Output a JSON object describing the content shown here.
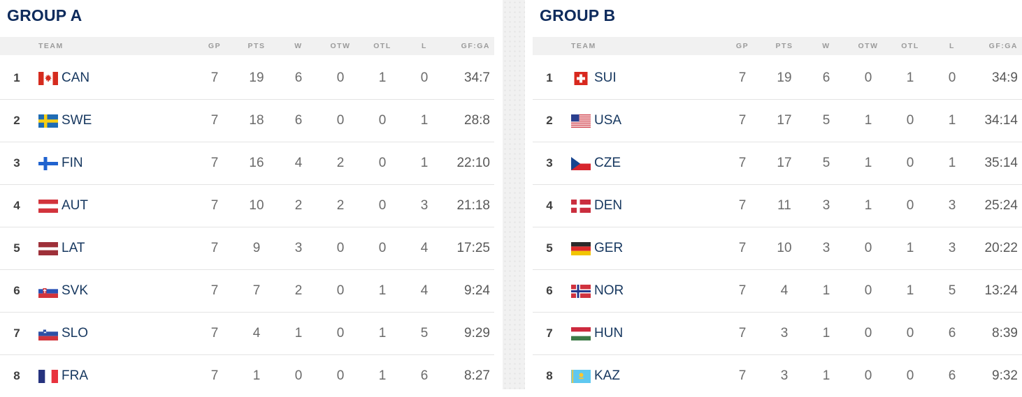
{
  "columns": {
    "team": "TEAM",
    "gp": "GP",
    "pts": "PTS",
    "w": "W",
    "otw": "OTW",
    "otl": "OTL",
    "l": "L",
    "gfga": "GF:GA"
  },
  "colors": {
    "title_navy": "#0e2b5c",
    "team_text_navy": "#16375f",
    "header_bg": "#f1f1f1",
    "header_text": "#9b9b9b",
    "number_text": "#6b6b6b",
    "rank_text": "#3f3f3f",
    "row_border": "#e4e4e4",
    "divider_bg": "#f1f1f1"
  },
  "groups": [
    {
      "title": "GROUP A",
      "rows": [
        {
          "rank": "1",
          "flag_icon": "flag-can-icon",
          "team": "CAN",
          "gp": "7",
          "pts": "19",
          "w": "6",
          "otw": "0",
          "otl": "1",
          "l": "0",
          "gfga": "34:7"
        },
        {
          "rank": "2",
          "flag_icon": "flag-swe-icon",
          "team": "SWE",
          "gp": "7",
          "pts": "18",
          "w": "6",
          "otw": "0",
          "otl": "0",
          "l": "1",
          "gfga": "28:8"
        },
        {
          "rank": "3",
          "flag_icon": "flag-fin-icon",
          "team": "FIN",
          "gp": "7",
          "pts": "16",
          "w": "4",
          "otw": "2",
          "otl": "0",
          "l": "1",
          "gfga": "22:10"
        },
        {
          "rank": "4",
          "flag_icon": "flag-aut-icon",
          "team": "AUT",
          "gp": "7",
          "pts": "10",
          "w": "2",
          "otw": "2",
          "otl": "0",
          "l": "3",
          "gfga": "21:18"
        },
        {
          "rank": "5",
          "flag_icon": "flag-lat-icon",
          "team": "LAT",
          "gp": "7",
          "pts": "9",
          "w": "3",
          "otw": "0",
          "otl": "0",
          "l": "4",
          "gfga": "17:25"
        },
        {
          "rank": "6",
          "flag_icon": "flag-svk-icon",
          "team": "SVK",
          "gp": "7",
          "pts": "7",
          "w": "2",
          "otw": "0",
          "otl": "1",
          "l": "4",
          "gfga": "9:24"
        },
        {
          "rank": "7",
          "flag_icon": "flag-slo-icon",
          "team": "SLO",
          "gp": "7",
          "pts": "4",
          "w": "1",
          "otw": "0",
          "otl": "1",
          "l": "5",
          "gfga": "9:29"
        },
        {
          "rank": "8",
          "flag_icon": "flag-fra-icon",
          "team": "FRA",
          "gp": "7",
          "pts": "1",
          "w": "0",
          "otw": "0",
          "otl": "1",
          "l": "6",
          "gfga": "8:27"
        }
      ]
    },
    {
      "title": "GROUP B",
      "rows": [
        {
          "rank": "1",
          "flag_icon": "flag-sui-icon",
          "team": "SUI",
          "gp": "7",
          "pts": "19",
          "w": "6",
          "otw": "0",
          "otl": "1",
          "l": "0",
          "gfga": "34:9"
        },
        {
          "rank": "2",
          "flag_icon": "flag-usa-icon",
          "team": "USA",
          "gp": "7",
          "pts": "17",
          "w": "5",
          "otw": "1",
          "otl": "0",
          "l": "1",
          "gfga": "34:14"
        },
        {
          "rank": "3",
          "flag_icon": "flag-cze-icon",
          "team": "CZE",
          "gp": "7",
          "pts": "17",
          "w": "5",
          "otw": "1",
          "otl": "0",
          "l": "1",
          "gfga": "35:14"
        },
        {
          "rank": "4",
          "flag_icon": "flag-den-icon",
          "team": "DEN",
          "gp": "7",
          "pts": "11",
          "w": "3",
          "otw": "1",
          "otl": "0",
          "l": "3",
          "gfga": "25:24"
        },
        {
          "rank": "5",
          "flag_icon": "flag-ger-icon",
          "team": "GER",
          "gp": "7",
          "pts": "10",
          "w": "3",
          "otw": "0",
          "otl": "1",
          "l": "3",
          "gfga": "20:22"
        },
        {
          "rank": "6",
          "flag_icon": "flag-nor-icon",
          "team": "NOR",
          "gp": "7",
          "pts": "4",
          "w": "1",
          "otw": "0",
          "otl": "1",
          "l": "5",
          "gfga": "13:24"
        },
        {
          "rank": "7",
          "flag_icon": "flag-hun-icon",
          "team": "HUN",
          "gp": "7",
          "pts": "3",
          "w": "1",
          "otw": "0",
          "otl": "0",
          "l": "6",
          "gfga": "8:39"
        },
        {
          "rank": "8",
          "flag_icon": "flag-kaz-icon",
          "team": "KAZ",
          "gp": "7",
          "pts": "3",
          "w": "1",
          "otw": "0",
          "otl": "0",
          "l": "6",
          "gfga": "9:32"
        }
      ]
    }
  ]
}
